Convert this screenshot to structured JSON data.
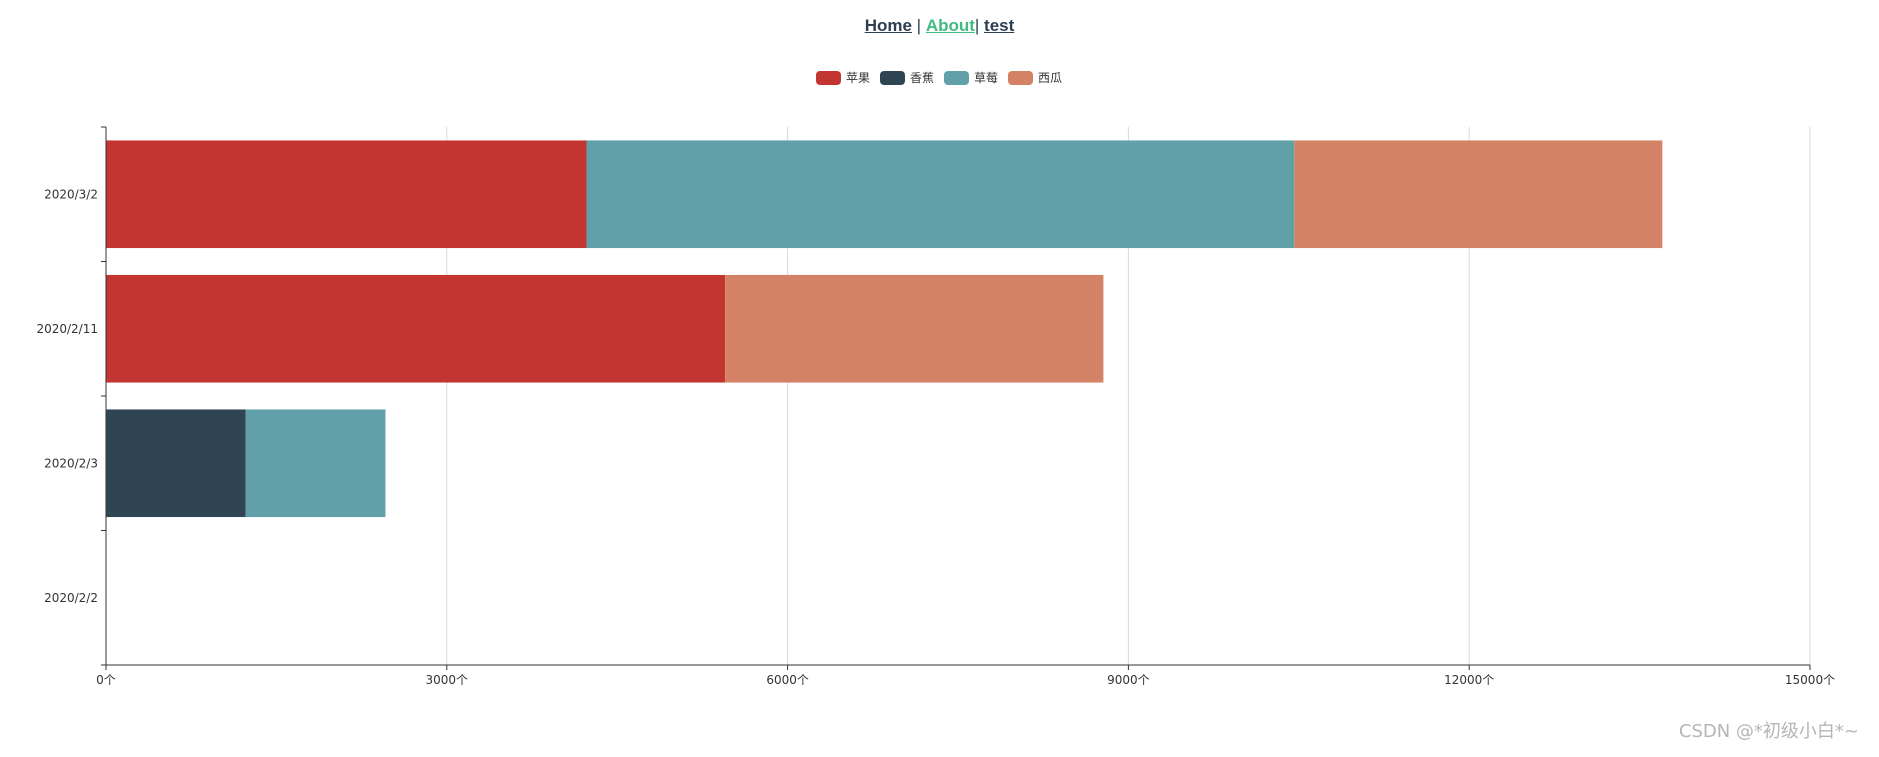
{
  "nav": {
    "home": "Home",
    "about": "About",
    "test": "test",
    "sep1": " | ",
    "sep2": "| "
  },
  "watermark": "CSDN @*初级小白*~",
  "chart_data": {
    "type": "bar",
    "orientation": "horizontal",
    "stacked": true,
    "categories": [
      "2020/2/2",
      "2020/2/3",
      "2020/2/11",
      "2020/3/2"
    ],
    "series": [
      {
        "name": "苹果",
        "color": "#c23531",
        "values": [
          0,
          0,
          5450,
          4230
        ]
      },
      {
        "name": "香蕉",
        "color": "#2f4554",
        "values": [
          0,
          1230,
          0,
          0
        ]
      },
      {
        "name": "草莓",
        "color": "#61a0a8",
        "values": [
          0,
          1230,
          0,
          6230
        ]
      },
      {
        "name": "西瓜",
        "color": "#d48265",
        "values": [
          0,
          0,
          3330,
          3240
        ]
      }
    ],
    "x_ticks": [
      0,
      3000,
      6000,
      9000,
      12000,
      15000
    ],
    "x_unit": "个",
    "xlim": [
      0,
      15000
    ],
    "grid": true,
    "legend": "top-center"
  }
}
